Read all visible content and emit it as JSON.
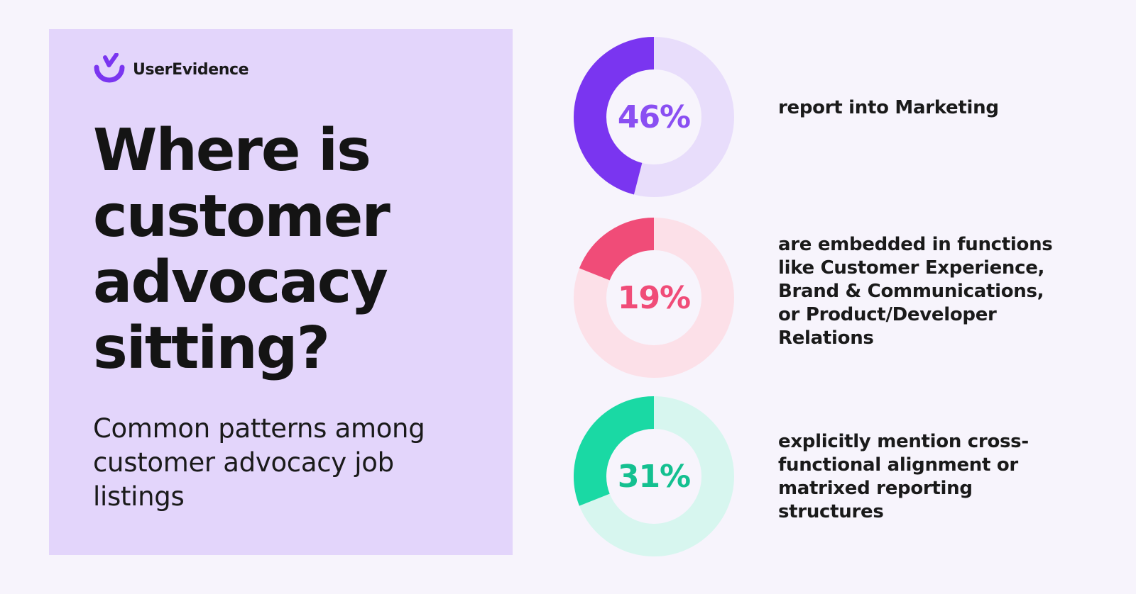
{
  "brand": {
    "name": "UserEvidence"
  },
  "headline": "Where is customer advocacy sitting?",
  "subheadline": "Common patterns among customer advocacy job listings",
  "colors": {
    "background": "#f7f4fc",
    "panel": "#e3d5fb",
    "logo": "#7a35f0"
  },
  "chart_data": {
    "type": "pie",
    "stats": [
      {
        "value": 46,
        "label": "46%",
        "description": "report into Marketing",
        "color": "#7a35f0",
        "track": "#e8ddfb",
        "text_color": "#8a4ff2"
      },
      {
        "value": 19,
        "label": "19%",
        "description": "are embedded in functions like Customer Experience, Brand & Communications, or Product/Developer Relations",
        "color": "#f04c78",
        "track": "#fce0e8",
        "text_color": "#f04c78"
      },
      {
        "value": 31,
        "label": "31%",
        "description": "explicitly mention cross-functional alignment or matrixed reporting structures",
        "color": "#1ad9a4",
        "track": "#d7f6ef",
        "text_color": "#14c090"
      }
    ]
  }
}
